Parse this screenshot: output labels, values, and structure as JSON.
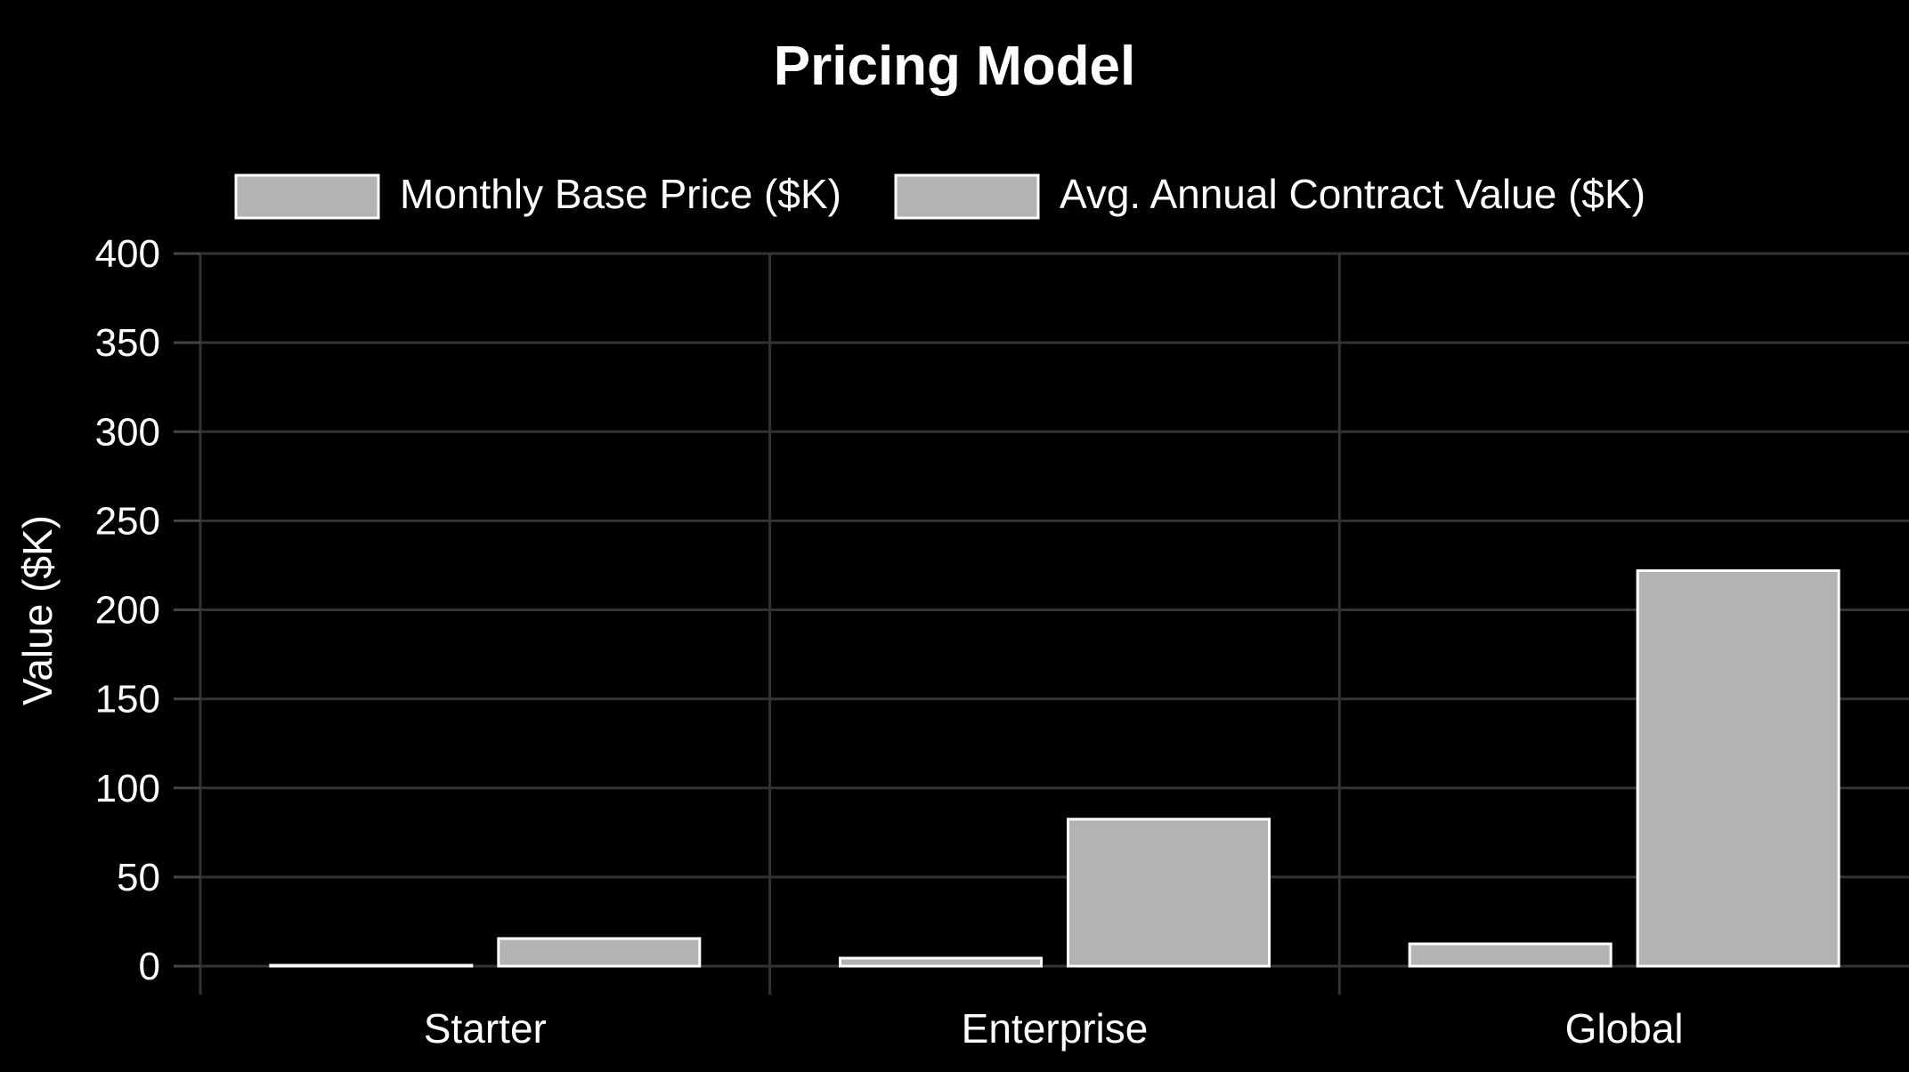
{
  "chart_data": {
    "type": "bar",
    "title": "Pricing Model",
    "ylabel": "Value ($K)",
    "xlabel": "",
    "categories": [
      "Starter",
      "Enterprise",
      "Global"
    ],
    "series": [
      {
        "name": "Monthly Base Price ($K)",
        "values": [
          0.5,
          4.5,
          12.5
        ]
      },
      {
        "name": "Avg. Annual Contract Value ($K)",
        "values": [
          15.5,
          82.5,
          222
        ]
      }
    ],
    "ylim": [
      0,
      400
    ],
    "yticks": [
      "0",
      "50",
      "100",
      "150",
      "200",
      "250",
      "300",
      "350",
      "400"
    ],
    "grid": true,
    "legend": "top",
    "colors": {
      "background": "#000000",
      "bar_fill": "#b3b3b3",
      "bar_edge": "#ffffff",
      "grid": "#333333",
      "text": "#ffffff"
    }
  }
}
